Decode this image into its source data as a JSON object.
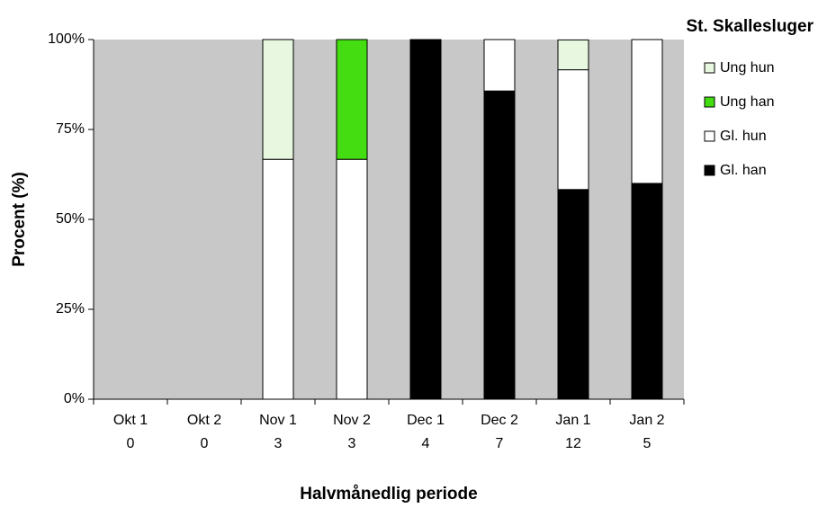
{
  "chart_data": {
    "type": "stacked_bar",
    "title": "St. Skallesluger",
    "x_label": "Halvmånedlig periode",
    "y_label": "Procent (%)",
    "categories": [
      "Okt 1",
      "Okt 2",
      "Nov 1",
      "Nov 2",
      "Dec 1",
      "Dec 2",
      "Jan 1",
      "Jan 2"
    ],
    "category_counts": [
      0,
      0,
      3,
      3,
      4,
      7,
      12,
      5
    ],
    "series": [
      {
        "name": "Gl. han",
        "color": "#000000",
        "values": [
          0,
          0,
          0,
          0,
          100,
          85.7,
          58.3,
          60
        ]
      },
      {
        "name": "Gl. hun",
        "color": "#ffffff",
        "values": [
          0,
          0,
          66.7,
          66.7,
          0,
          14.3,
          33.3,
          40
        ]
      },
      {
        "name": "Ung han",
        "color": "#44dd11",
        "values": [
          0,
          0,
          0,
          33.3,
          0,
          0,
          0,
          0
        ]
      },
      {
        "name": "Ung hun",
        "color": "#e8f8e0",
        "values": [
          0,
          0,
          33.3,
          0,
          0,
          0,
          8.3,
          0
        ]
      }
    ],
    "ylim": [
      0,
      100
    ],
    "yticks": [
      {
        "value": 0,
        "label": "0%"
      },
      {
        "value": 25,
        "label": "25%"
      },
      {
        "value": 50,
        "label": "50%"
      },
      {
        "value": 75,
        "label": "75%"
      },
      {
        "value": 100,
        "label": "100%"
      }
    ],
    "legend": "right"
  }
}
